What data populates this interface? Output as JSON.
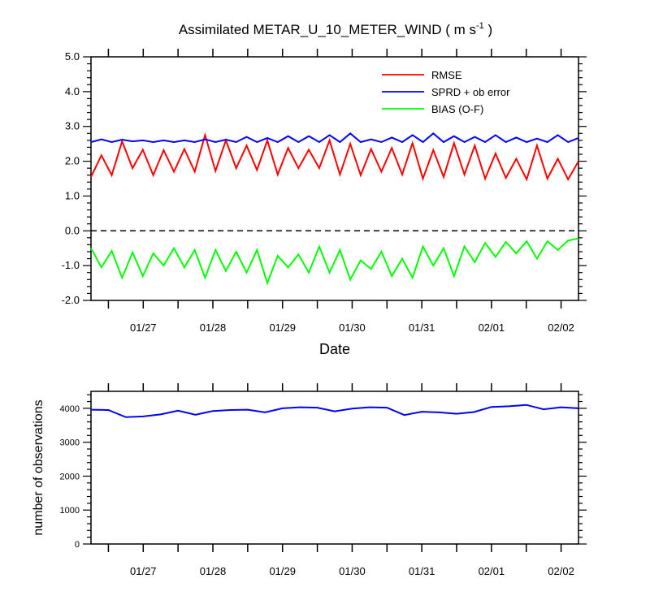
{
  "chart_data": [
    {
      "type": "line",
      "title_main": "Assimilated METAR_U_10_METER_WIND ( m s",
      "title_sup": "-1",
      "title_end": " )",
      "xlabel": "Date",
      "ylabel": "",
      "ylim": [
        -2.0,
        5.0
      ],
      "yticks": [
        "5.0",
        "4.0",
        "3.0",
        "2.0",
        "1.0",
        "0.0",
        "-1.0",
        "-2.0"
      ],
      "yvalues": [
        5,
        4,
        3,
        2,
        1,
        0,
        -1,
        -2
      ],
      "xlim": [
        0,
        84
      ],
      "xtick_labels": [
        "01/27",
        "01/28",
        "01/29",
        "01/30",
        "01/31",
        "02/01",
        "02/02"
      ],
      "xtick_positions": [
        9,
        21,
        33,
        45,
        57,
        69,
        81
      ],
      "zero_line": true,
      "legend_position": "top-right",
      "series": [
        {
          "name": "RMSE",
          "color": "#ff0000",
          "values": [
            1.55,
            2.17,
            1.6,
            2.57,
            1.8,
            2.33,
            1.6,
            2.32,
            1.7,
            2.35,
            1.7,
            2.75,
            1.72,
            2.6,
            1.8,
            2.45,
            1.75,
            2.6,
            1.62,
            2.38,
            1.8,
            2.33,
            1.8,
            2.6,
            1.62,
            2.5,
            1.6,
            2.35,
            1.7,
            2.38,
            1.62,
            2.52,
            1.5,
            2.32,
            1.55,
            2.52,
            1.62,
            2.45,
            1.5,
            2.22,
            1.52,
            2.07,
            1.48,
            2.45,
            1.5,
            2.07,
            1.48,
            2.0
          ]
        },
        {
          "name": "SPRD + ob error",
          "color": "#0000ff",
          "values": [
            2.55,
            2.63,
            2.55,
            2.62,
            2.57,
            2.6,
            2.55,
            2.6,
            2.55,
            2.6,
            2.55,
            2.63,
            2.55,
            2.62,
            2.55,
            2.7,
            2.55,
            2.67,
            2.55,
            2.72,
            2.55,
            2.72,
            2.55,
            2.75,
            2.55,
            2.8,
            2.55,
            2.63,
            2.55,
            2.68,
            2.55,
            2.75,
            2.55,
            2.8,
            2.55,
            2.72,
            2.55,
            2.7,
            2.55,
            2.75,
            2.55,
            2.68,
            2.55,
            2.65,
            2.55,
            2.75,
            2.55,
            2.67
          ]
        },
        {
          "name": "BIAS (O-F)",
          "color": "#00ff00",
          "values": [
            -0.5,
            -1.05,
            -0.58,
            -1.35,
            -0.62,
            -1.3,
            -0.65,
            -1.0,
            -0.5,
            -1.05,
            -0.55,
            -1.35,
            -0.55,
            -1.15,
            -0.6,
            -1.2,
            -0.55,
            -1.5,
            -0.72,
            -1.05,
            -0.68,
            -1.2,
            -0.45,
            -1.2,
            -0.55,
            -1.4,
            -0.85,
            -1.1,
            -0.6,
            -1.3,
            -0.8,
            -1.35,
            -0.45,
            -1.0,
            -0.5,
            -1.3,
            -0.45,
            -0.9,
            -0.35,
            -0.75,
            -0.32,
            -0.65,
            -0.3,
            -0.8,
            -0.3,
            -0.55,
            -0.28,
            -0.22
          ]
        }
      ]
    },
    {
      "type": "line",
      "title": "",
      "xlabel": "",
      "ylabel": "number of observations",
      "ylim": [
        0,
        4500
      ],
      "yticks": [
        "4000",
        "3000",
        "2000",
        "1000",
        "0"
      ],
      "yvalues": [
        4000,
        3000,
        2000,
        1000,
        0
      ],
      "xlim": [
        0,
        84
      ],
      "xtick_labels": [
        "01/27",
        "01/28",
        "01/29",
        "01/30",
        "01/31",
        "02/01",
        "02/02"
      ],
      "xtick_positions": [
        9,
        21,
        33,
        45,
        57,
        69,
        81
      ],
      "series": [
        {
          "color": "#0000ff",
          "values": [
            3960,
            3950,
            3740,
            3760,
            3820,
            3930,
            3810,
            3920,
            3950,
            3960,
            3880,
            4000,
            4030,
            4020,
            3910,
            3990,
            4030,
            4020,
            3800,
            3900,
            3880,
            3840,
            3890,
            4040,
            4060,
            4100,
            3970,
            4030,
            4000
          ]
        }
      ]
    }
  ]
}
